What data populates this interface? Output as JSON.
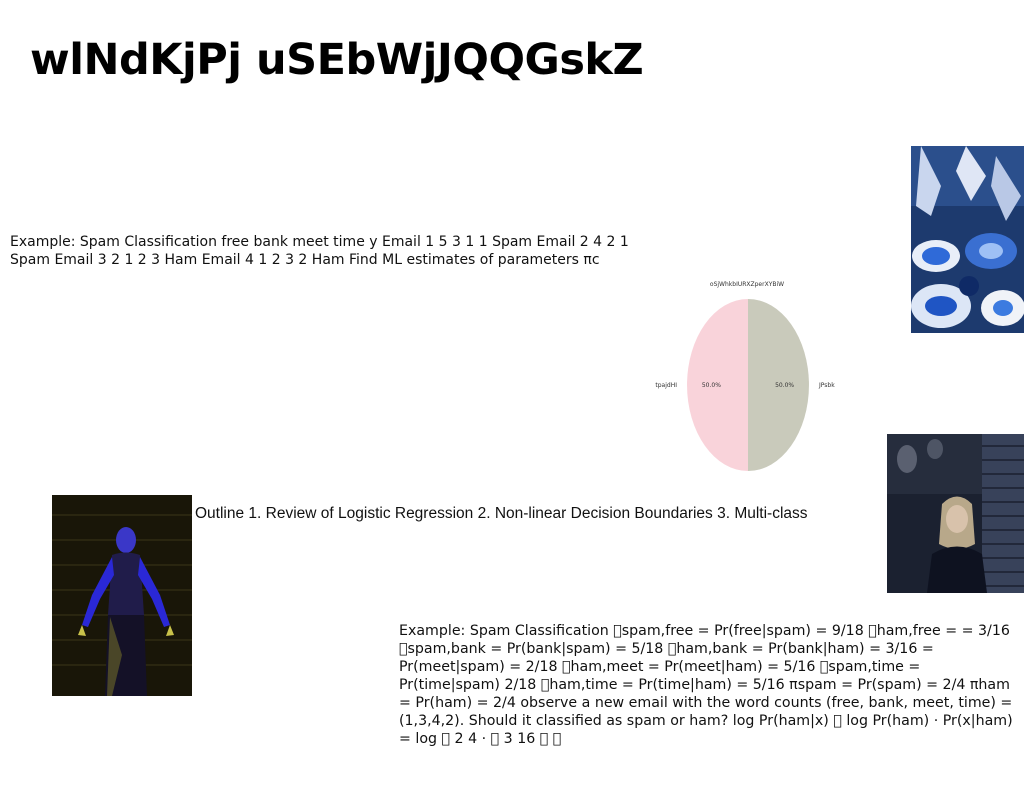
{
  "page": {
    "title": "wlNdKjPj uSEbWjJQQGskZ"
  },
  "text_blocks": {
    "spam_example_intro": "Example: Spam Classification free bank meet time y Email 1 5 3 1 1 Spam Email 2 4 2 1 Spam Email 3 2 1 2 3 Ham Email 4 1 2 3 2 Ham Find ML estimates of parameters πc",
    "outline": "Outline 1. Review of Logistic Regression 2. Non-linear Decision Boundaries 3. Multi-class",
    "spam_example_estimates": "Example: Spam Classification \u0000spam,free = Pr(free|spam) = 9/18 \u0000ham,free = = 3/16 \u0000spam,bank = Pr(bank|spam) = 5/18 \u0000ham,bank = Pr(bank|ham) = 3/16 = Pr(meet|spam) = 2/18 \u0000ham,meet = Pr(meet|ham) = 5/16 \u0000spam,time = Pr(time|spam) 2/18 \u0000ham,time = Pr(time|ham) = 5/16 πspam = Pr(spam) = 2/4 πham = Pr(ham) = 2/4 observe a new email with the word counts (free, bank, meet, time) = (1,3,4,2). Should it classified as spam or ham? log Pr(ham|x) \u0000 log Pr(ham) · Pr(x|ham) = log \u0000 2 4 · \u0000 3 16 \u0000 \u0000"
  },
  "images": {
    "pottery": "blue-pottery-photo",
    "woman_wall": "woman-by-brick-wall-photo",
    "dancer": "dancer-blue-light-photo"
  },
  "chart_data": {
    "type": "pie",
    "title": "oSjWhkbIURXZperXYBiW",
    "categories": [
      "tpajdHI",
      "JPsbk"
    ],
    "values": [
      50.0,
      50.0
    ],
    "value_labels": [
      "50.0%",
      "50.0%"
    ],
    "colors": [
      "#f9d3da",
      "#c9cabb"
    ],
    "legend": "none"
  }
}
